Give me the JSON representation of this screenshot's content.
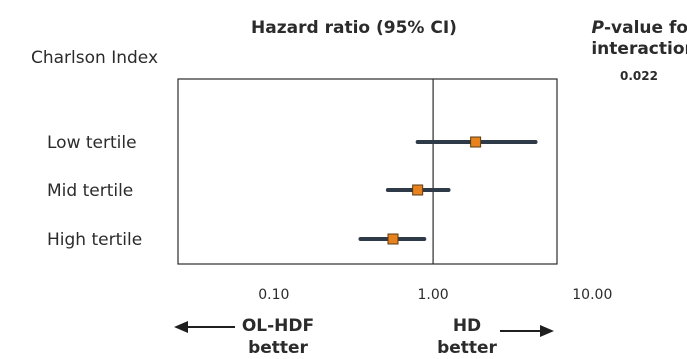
{
  "chart_data": {
    "type": "forest",
    "title": "Hazard ratio (95% CI)",
    "row_header": "Charlson Index",
    "pvalue_header_italic": "P",
    "pvalue_header_rest": "-value for",
    "pvalue_header_line2": "interaction",
    "pvalue": "0.022",
    "x_scale": "log",
    "xlim": [
      0.025,
      6.0
    ],
    "reference_line": 1.0,
    "ticks": [
      {
        "value": 0.1,
        "label": "0.10"
      },
      {
        "value": 1.0,
        "label": "1.00"
      },
      {
        "value": 10.0,
        "label": "10.00"
      }
    ],
    "rows": [
      {
        "label": "Low tertile",
        "hr": 1.85,
        "lower": 0.8,
        "upper": 4.4
      },
      {
        "label": "Mid tertile",
        "hr": 0.8,
        "lower": 0.52,
        "upper": 1.25
      },
      {
        "label": "High tertile",
        "hr": 0.56,
        "lower": 0.35,
        "upper": 0.88
      }
    ],
    "left_direction": {
      "line1": "OL-HDF",
      "line2": "better"
    },
    "right_direction": {
      "line1": "HD",
      "line2": "better"
    },
    "colors": {
      "marker_fill": "#e8821e",
      "marker_stroke": "#5a3a14",
      "ci_line": "#2e3a47",
      "frame": "#2b2b2b",
      "text": "#2b2b2b"
    }
  }
}
